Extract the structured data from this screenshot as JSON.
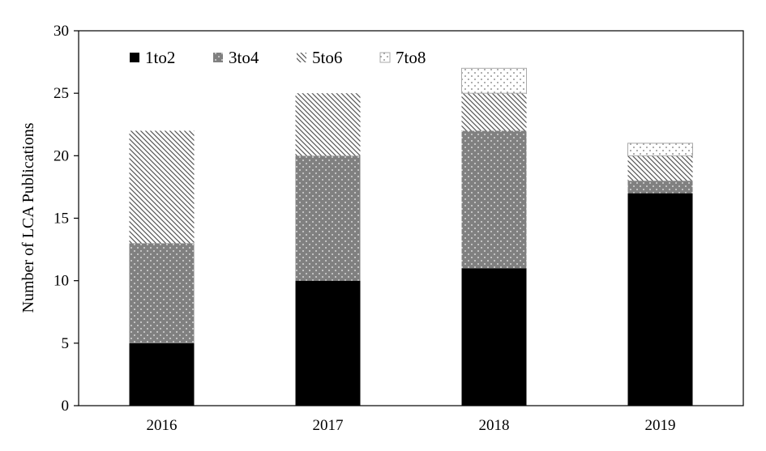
{
  "chart_data": {
    "type": "bar",
    "stacked": true,
    "title": "",
    "xlabel": "",
    "ylabel": "Number of LCA Publications",
    "categories": [
      "2016",
      "2017",
      "2018",
      "2019"
    ],
    "series": [
      {
        "name": "1to2",
        "values": [
          5,
          10,
          11,
          17
        ],
        "color": "#000000",
        "pattern": "solid"
      },
      {
        "name": "3to4",
        "values": [
          8,
          10,
          11,
          1
        ],
        "color": "#808080",
        "pattern": "dots-light-on-gray"
      },
      {
        "name": "5to6",
        "values": [
          9,
          5,
          3,
          2
        ],
        "color": "#555555",
        "pattern": "diagonal-hatch"
      },
      {
        "name": "7to8",
        "values": [
          0,
          0,
          2,
          1
        ],
        "color": "#999999",
        "pattern": "sparse-dots"
      }
    ],
    "ylim": [
      0,
      30
    ],
    "yticks": [
      0,
      5,
      10,
      15,
      20,
      25,
      30
    ],
    "grid": false,
    "legend_position": "top-left"
  }
}
